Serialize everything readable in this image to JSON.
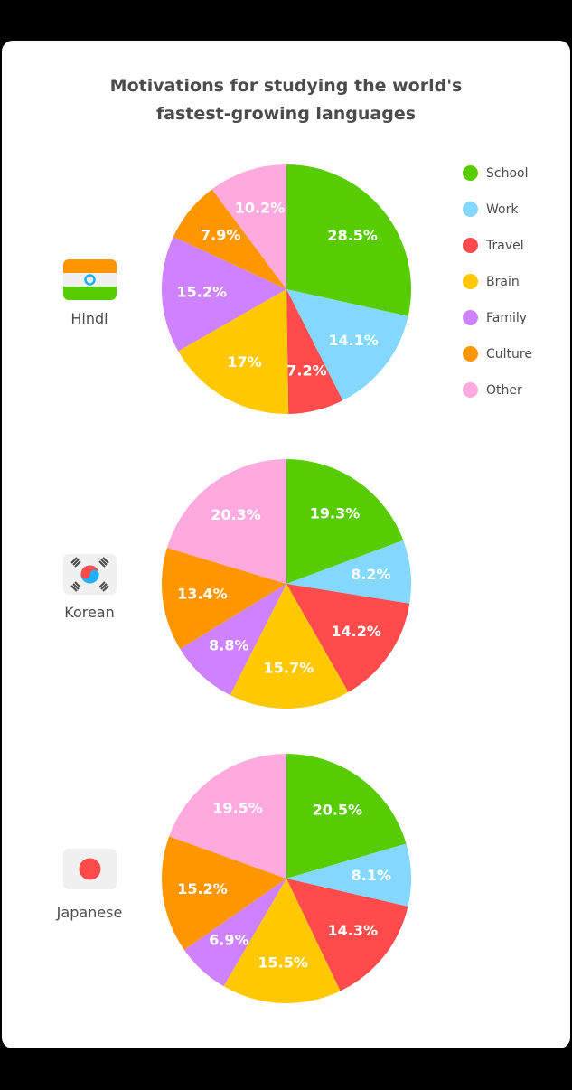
{
  "title_lines": [
    "Motivations for studying the world's",
    "fastest-growing languages"
  ],
  "colors": {
    "School": "#58cc02",
    "Work": "#84d8ff",
    "Travel": "#ff4b4b",
    "Brain": "#ffc800",
    "Family": "#ce82ff",
    "Culture": "#ff9600",
    "Other": "#ffaadf"
  },
  "legend": [
    "School",
    "Work",
    "Travel",
    "Brain",
    "Family",
    "Culture",
    "Other"
  ],
  "chart_data": [
    {
      "type": "pie",
      "name": "Hindi",
      "flag": "india-flag",
      "labels": [
        "School",
        "Work",
        "Travel",
        "Brain",
        "Family",
        "Culture",
        "Other"
      ],
      "values": [
        28.5,
        14.1,
        7.2,
        17,
        15.2,
        7.9,
        10.2
      ],
      "value_labels": [
        "28.5%",
        "14.1%",
        "7.2%",
        "17%",
        "15.2%",
        "7.9%",
        "10.2%"
      ]
    },
    {
      "type": "pie",
      "name": "Korean",
      "flag": "korea-flag",
      "labels": [
        "School",
        "Work",
        "Travel",
        "Brain",
        "Family",
        "Culture",
        "Other"
      ],
      "values": [
        19.3,
        8.2,
        14.2,
        15.7,
        8.8,
        13.4,
        20.3
      ],
      "value_labels": [
        "19.3%",
        "8.2%",
        "14.2%",
        "15.7%",
        "8.8%",
        "13.4%",
        "20.3%"
      ]
    },
    {
      "type": "pie",
      "name": "Japanese",
      "flag": "japan-flag",
      "labels": [
        "School",
        "Work",
        "Travel",
        "Brain",
        "Family",
        "Culture",
        "Other"
      ],
      "values": [
        20.5,
        8.1,
        14.3,
        15.5,
        6.9,
        15.2,
        19.5
      ],
      "value_labels": [
        "20.5%",
        "8.1%",
        "14.3%",
        "15.5%",
        "6.9%",
        "15.2%",
        "19.5%"
      ]
    }
  ]
}
